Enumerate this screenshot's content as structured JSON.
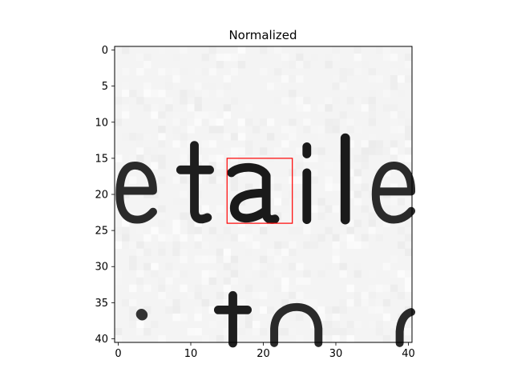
{
  "chart_data": {
    "type": "heatmap",
    "title": "Normalized",
    "xlabel": "",
    "ylabel": "",
    "xlim": [
      -0.5,
      40.5
    ],
    "ylim": [
      40.5,
      -0.5
    ],
    "x_ticks": [
      0,
      10,
      20,
      30,
      40
    ],
    "y_ticks": [
      0,
      5,
      10,
      15,
      20,
      25,
      30,
      35,
      40
    ],
    "x_tick_labels": [
      "0",
      "10",
      "20",
      "30",
      "40"
    ],
    "y_tick_labels": [
      "0",
      "5",
      "10",
      "15",
      "20",
      "25",
      "30",
      "35",
      "40"
    ],
    "colormap": "gray",
    "image_content": "grayscale scan of printed text fragment 'etaile' over 'to'",
    "highlight_box": {
      "x": [
        15,
        24
      ],
      "y": [
        15,
        24
      ],
      "color": "#ff0000"
    },
    "grid": false
  }
}
